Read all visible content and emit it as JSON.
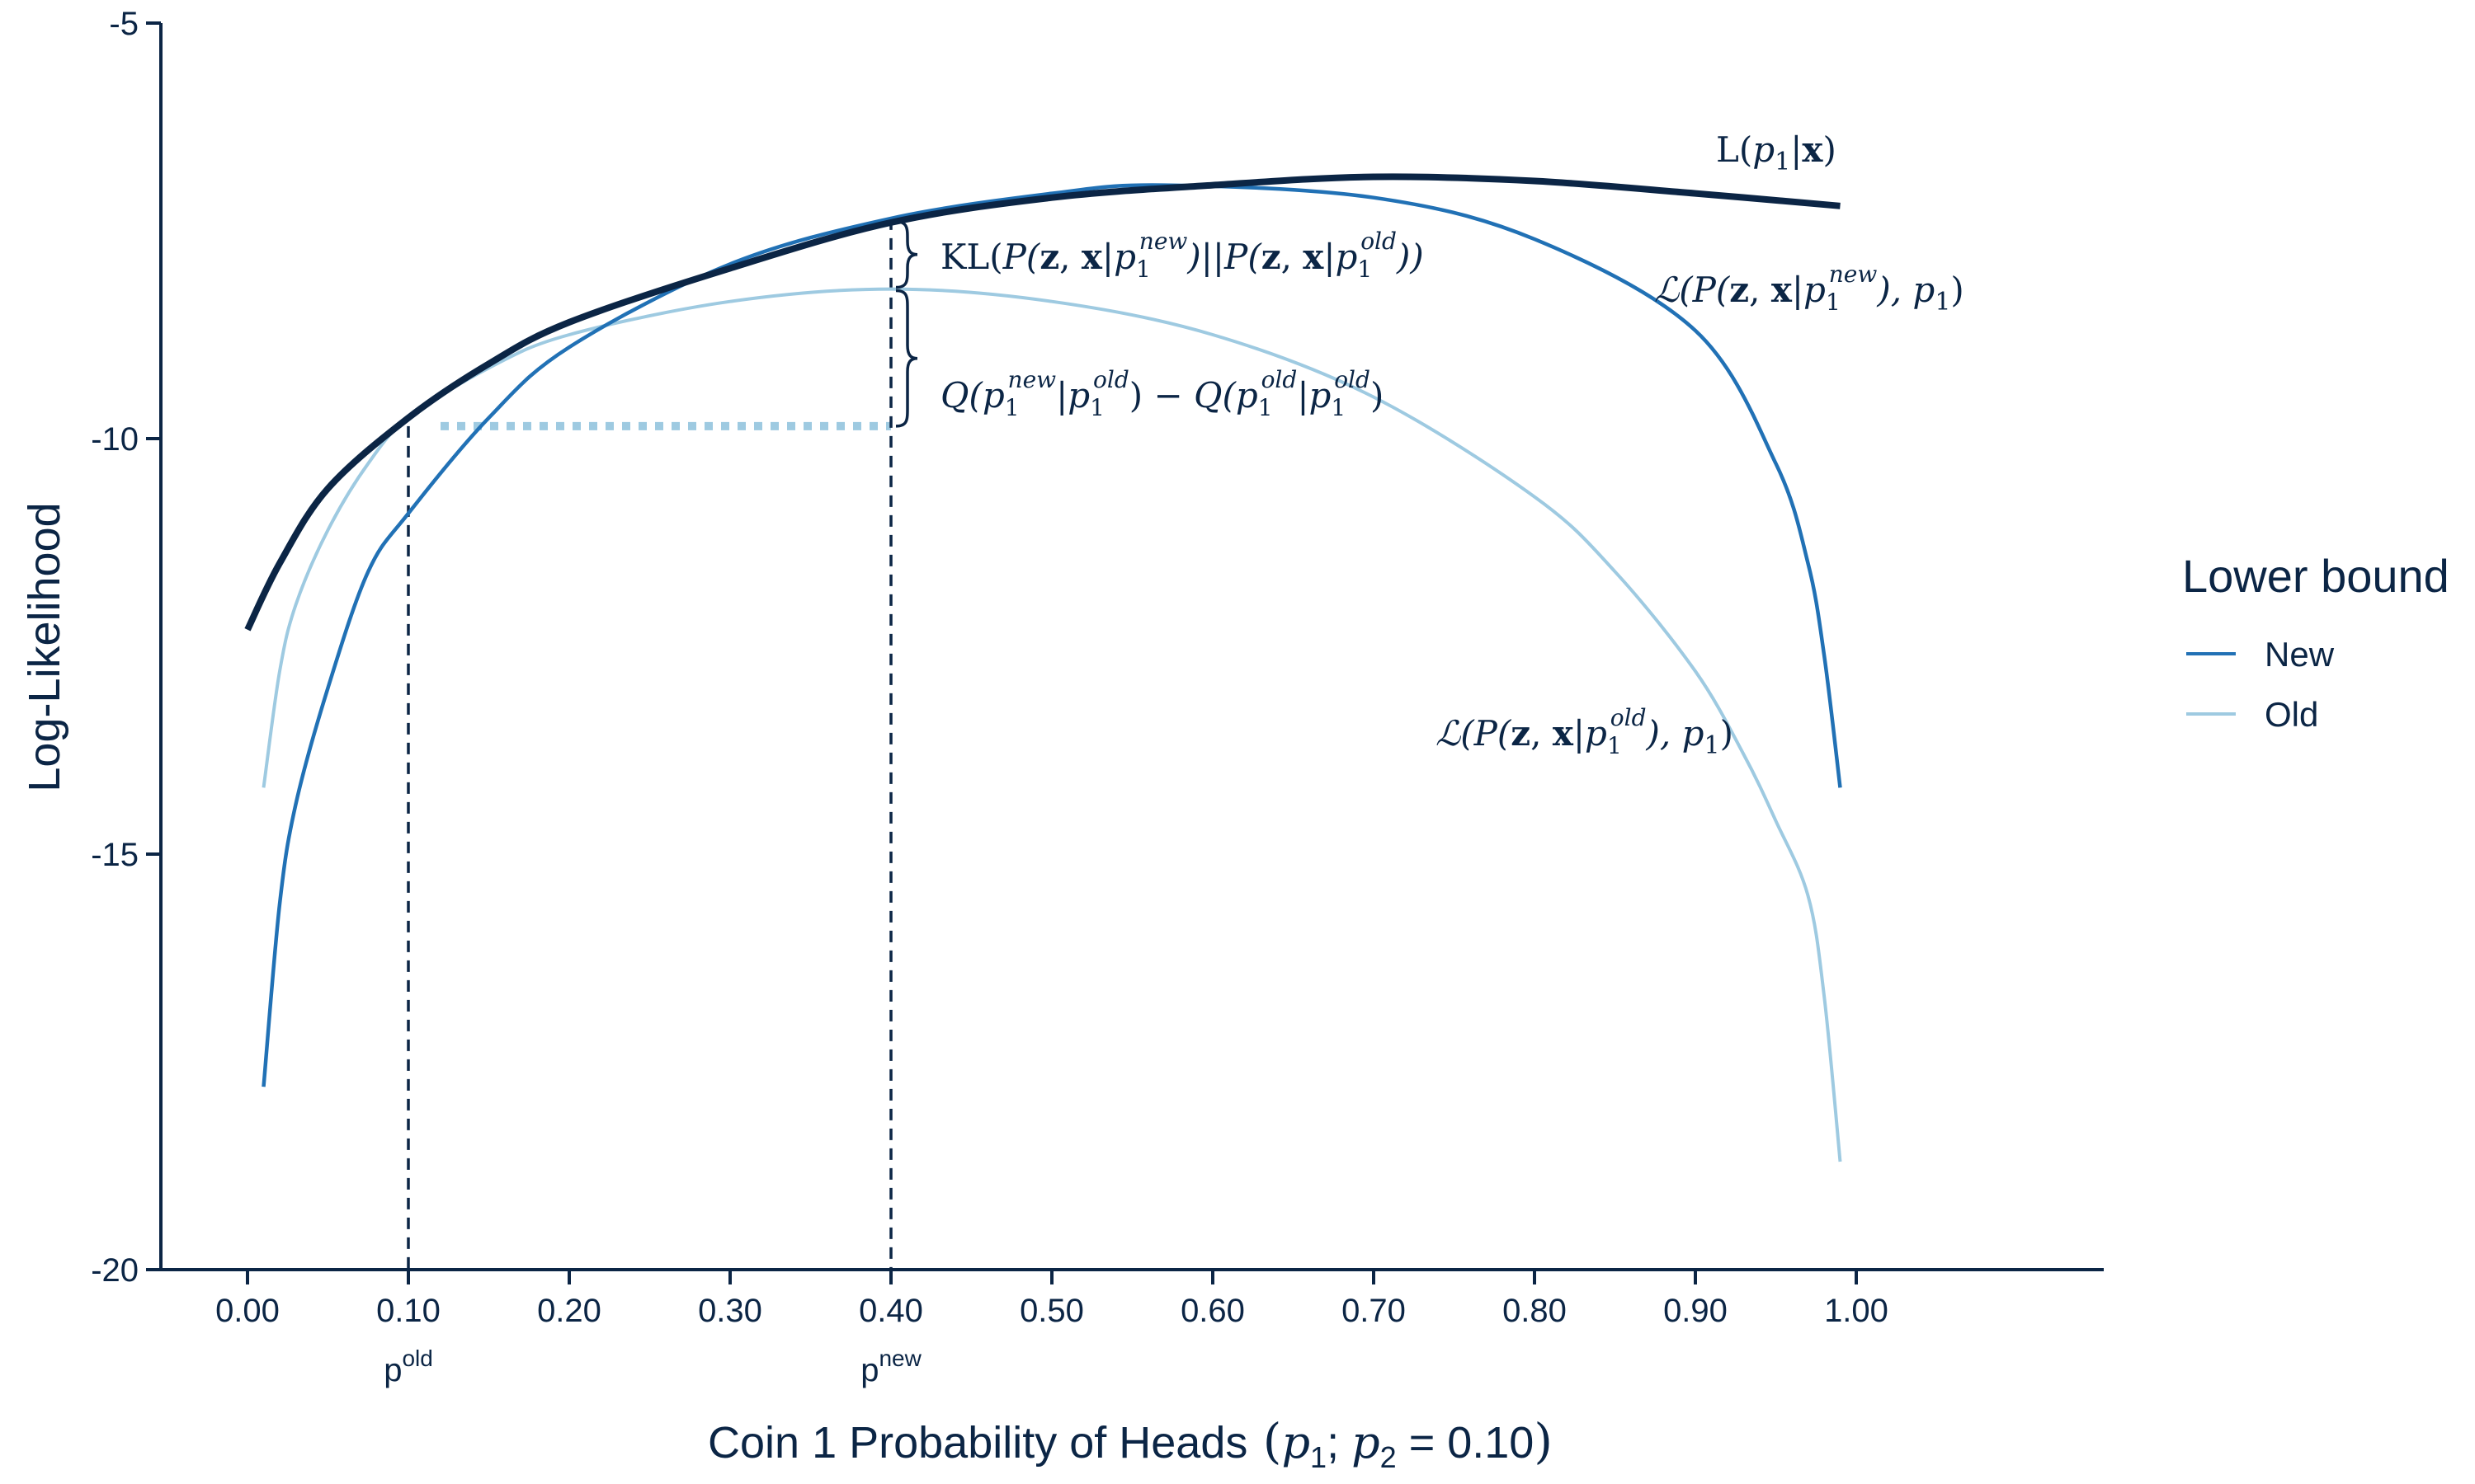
{
  "chart_data": {
    "type": "line",
    "xlabel": "Coin 1 Probability of Heads",
    "xlabel_math": "(p1; p2 = 0.10)",
    "ylabel": "Log-Likelihood",
    "xlim": [
      0.0,
      1.0
    ],
    "ylim": [
      -20,
      -5
    ],
    "x_ticks": [
      "0.00",
      "0.10",
      "0.20",
      "0.30",
      "0.40",
      "0.50",
      "0.60",
      "0.70",
      "0.80",
      "0.90",
      "1.00"
    ],
    "y_ticks": [
      "-5",
      "-10",
      "-15",
      "-20"
    ],
    "grid": false,
    "legend": {
      "title": "Lower bound",
      "placement": "right",
      "entries": [
        {
          "name": "New",
          "color": "#2171b5"
        },
        {
          "name": "Old",
          "color": "#9ecae1"
        }
      ]
    },
    "series": [
      {
        "label": "L(p1|x)",
        "color": "#0b2545",
        "x": [
          0.0,
          0.02,
          0.05,
          0.1,
          0.15,
          0.2,
          0.3,
          0.4,
          0.5,
          0.6,
          0.7,
          0.8,
          0.9,
          0.99
        ],
        "y": [
          -12.3,
          -11.5,
          -10.6,
          -9.75,
          -9.1,
          -8.6,
          -7.95,
          -7.4,
          -7.1,
          -6.95,
          -6.85,
          -6.9,
          -7.05,
          -7.2
        ]
      },
      {
        "name": "New",
        "label": "ℒ(P(z, x|p1new), p1)",
        "color": "#2171b5",
        "x": [
          0.01,
          0.02,
          0.03,
          0.05,
          0.075,
          0.1,
          0.15,
          0.2,
          0.3,
          0.4,
          0.5,
          0.57,
          0.7,
          0.8,
          0.9,
          0.95,
          0.97,
          0.98,
          0.99
        ],
        "y": [
          -17.8,
          -15.6,
          -14.4,
          -13.0,
          -11.6,
          -10.9,
          -9.75,
          -8.9,
          -7.9,
          -7.35,
          -7.05,
          -6.95,
          -7.1,
          -7.6,
          -8.7,
          -10.3,
          -11.5,
          -12.6,
          -14.2
        ]
      },
      {
        "name": "Old",
        "label": "ℒ(P(z, x|p1old), p1)",
        "color": "#9ecae1",
        "x": [
          0.01,
          0.02,
          0.03,
          0.05,
          0.075,
          0.1,
          0.15,
          0.2,
          0.3,
          0.4,
          0.5,
          0.6,
          0.7,
          0.8,
          0.85,
          0.9,
          0.93,
          0.95,
          0.97,
          0.98,
          0.99
        ],
        "y": [
          -14.2,
          -12.8,
          -12.0,
          -11.1,
          -10.3,
          -9.75,
          -9.15,
          -8.75,
          -8.35,
          -8.2,
          -8.35,
          -8.75,
          -9.5,
          -10.7,
          -11.6,
          -12.8,
          -13.8,
          -14.6,
          -15.5,
          -16.7,
          -18.7
        ]
      }
    ],
    "annotations": {
      "curve_label_L": "L(p1|x)",
      "curve_label_new": "ℒ(P(z, x|p1new), p1)",
      "curve_label_old": "ℒ(P(z, x|p1old), p1)",
      "kl_label": "KL(P(z, x|p1new)||P(z, x|p1old))",
      "q_label": "Q(p1new|p1old) − Q(p1old|p1old)",
      "p_old": {
        "x": 0.1,
        "label": "pold"
      },
      "p_new": {
        "x": 0.4,
        "label": "pnew"
      },
      "q_old_level": -9.85,
      "q_old_from_x": 0.12
    }
  }
}
